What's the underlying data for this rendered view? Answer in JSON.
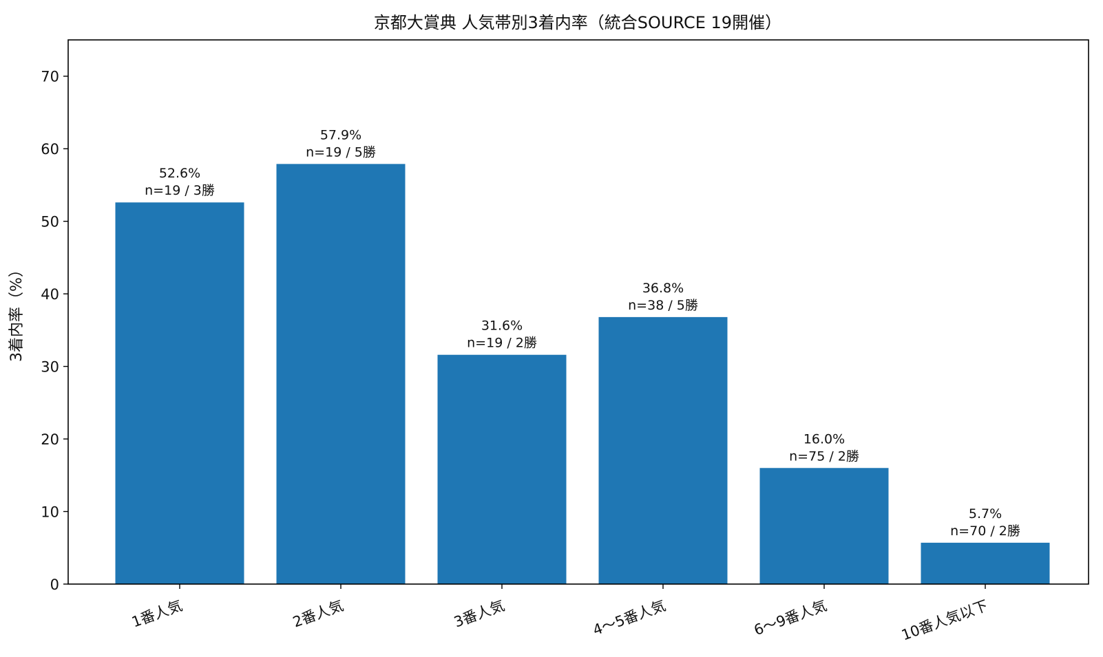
{
  "chart_data": {
    "type": "bar",
    "title": "京都大賞典 人気帯別3着内率（統合SOURCE 19開催）",
    "xlabel": "",
    "ylabel": "3着内率（%）",
    "ylim": [
      0,
      75
    ],
    "yticks": [
      0,
      10,
      20,
      30,
      40,
      50,
      60,
      70
    ],
    "grid": false,
    "categories": [
      "1番人気",
      "2番人気",
      "3番人気",
      "4〜5番人気",
      "6〜9番人気",
      "10番人気以下"
    ],
    "values": [
      52.6,
      57.9,
      31.6,
      36.8,
      16.0,
      5.7
    ],
    "bar_labels": [
      [
        "52.6%",
        "n=19 / 3勝"
      ],
      [
        "57.9%",
        "n=19 / 5勝"
      ],
      [
        "31.6%",
        "n=19 / 2勝"
      ],
      [
        "36.8%",
        "n=38 / 5勝"
      ],
      [
        "16.0%",
        "n=75 / 2勝"
      ],
      [
        "5.7%",
        "n=70 / 2勝"
      ]
    ],
    "colors": {
      "bar": "#1f77b4",
      "axis": "#000000",
      "text": "#111111",
      "background": "#ffffff"
    }
  }
}
